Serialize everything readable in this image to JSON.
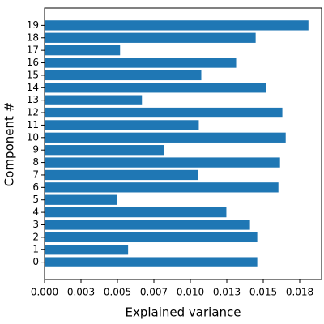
{
  "chart_data": {
    "type": "barh",
    "xlabel": "Explained variance",
    "ylabel": "Component #",
    "categories": [
      "0",
      "1",
      "2",
      "3",
      "4",
      "5",
      "6",
      "7",
      "8",
      "9",
      "10",
      "11",
      "12",
      "13",
      "14",
      "15",
      "16",
      "17",
      "18",
      "19"
    ],
    "values": [
      0.01459,
      0.00573,
      0.01459,
      0.01409,
      0.01247,
      0.00496,
      0.01604,
      0.01052,
      0.01615,
      0.00818,
      0.01654,
      0.01058,
      0.01631,
      0.00668,
      0.0152,
      0.01075,
      0.01314,
      0.00518,
      0.01448,
      0.0181
    ],
    "color": "#1f77b4",
    "xlim": [
      0,
      0.019
    ],
    "xticks": [
      {
        "value": 0,
        "label": "0.000"
      },
      {
        "value": 0.0025,
        "label": "0.003"
      },
      {
        "value": 0.005,
        "label": "0.005"
      },
      {
        "value": 0.0075,
        "label": "0.007"
      },
      {
        "value": 0.01,
        "label": "0.010"
      },
      {
        "value": 0.0125,
        "label": "0.013"
      },
      {
        "value": 0.015,
        "label": "0.015"
      },
      {
        "value": 0.0175,
        "label": "0.018"
      }
    ]
  }
}
